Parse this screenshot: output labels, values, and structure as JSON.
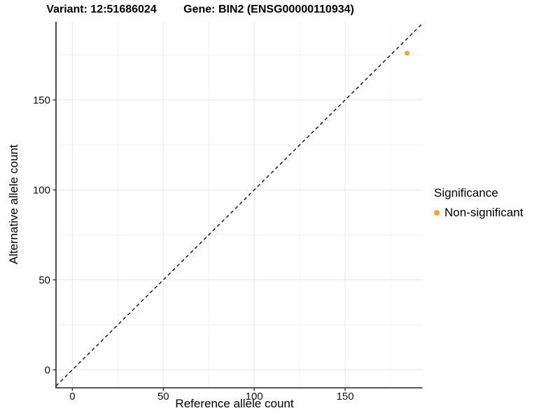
{
  "titles": {
    "variant": "Variant: 12:51686024",
    "gene": "Gene: BIN2 (ENSG00000110934)"
  },
  "axes": {
    "x_label": "Reference allele count",
    "y_label": "Alternative allele count"
  },
  "legend": {
    "title": "Significance",
    "items": [
      {
        "label": "Non-significant",
        "color": "#FBA338"
      }
    ]
  },
  "chart_data": {
    "type": "scatter",
    "title_left": "Variant: 12:51686024",
    "title_right": "Gene: BIN2 (ENSG00000110934)",
    "xlabel": "Reference allele count",
    "ylabel": "Alternative allele count",
    "xlim": [
      -9,
      192.5
    ],
    "ylim": [
      -10,
      193.5
    ],
    "x_ticks": [
      0,
      50,
      100,
      150
    ],
    "y_ticks": [
      0,
      50,
      100,
      150
    ],
    "x_minor_gridlines": [
      25,
      75,
      125,
      175
    ],
    "y_minor_gridlines": [
      25,
      75,
      125,
      175
    ],
    "grid": "major+minor",
    "legend_position": "right",
    "reference_line": {
      "type": "identity y=x",
      "style": "dashed",
      "color": "#111111"
    },
    "series": [
      {
        "name": "Non-significant",
        "color": "#FBA338",
        "points": [
          {
            "x": 184,
            "y": 176
          }
        ]
      }
    ]
  },
  "style": {
    "grid_major": "#E7E7E7",
    "grid_minor": "#F3F3F3",
    "axis_line": "#3F3F3F",
    "tick_color": "#333333",
    "tick_label_color": "#111111",
    "background": "#FFFFFF"
  }
}
